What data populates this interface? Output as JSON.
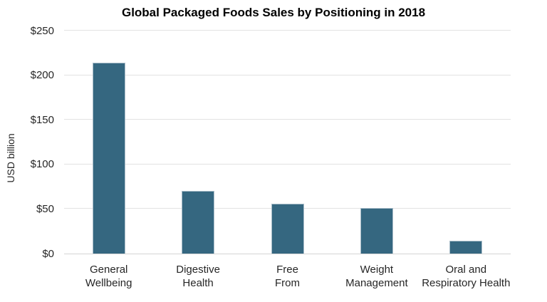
{
  "chart_data": {
    "type": "bar",
    "title": "Global Packaged Foods Sales by Positioning in 2018",
    "xlabel": "",
    "ylabel": "USD billion",
    "categories": [
      "General Wellbeing",
      "Digestive Health",
      "Free From",
      "Weight Management",
      "Oral and Respiratory Health"
    ],
    "category_label_lines": [
      [
        "General",
        "Wellbeing"
      ],
      [
        "Digestive",
        "Health"
      ],
      [
        "Free",
        "From"
      ],
      [
        "Weight",
        "Management"
      ],
      [
        "Oral and",
        "Respiratory Health"
      ]
    ],
    "values": [
      214,
      70,
      56,
      51,
      14
    ],
    "unit": "USD billion",
    "ylim": [
      0,
      250
    ],
    "ytick_step": 50,
    "yticks": [
      {
        "label": "$250",
        "value": 250
      },
      {
        "label": "$200",
        "value": 200
      },
      {
        "label": "$150",
        "value": 150
      },
      {
        "label": "$100",
        "value": 100
      },
      {
        "label": "$50",
        "value": 50
      },
      {
        "label": "$0",
        "value": 0
      }
    ],
    "grid": "horizontal",
    "legend": "none",
    "colors": {
      "bar_fill": "#356780",
      "bar_border": "#A9BDC9",
      "gridline": "#E2E2E2",
      "axis_line": "#D5D5D5",
      "text": "#262626",
      "title_text": "#000000",
      "background": "#FFFFFF"
    }
  }
}
